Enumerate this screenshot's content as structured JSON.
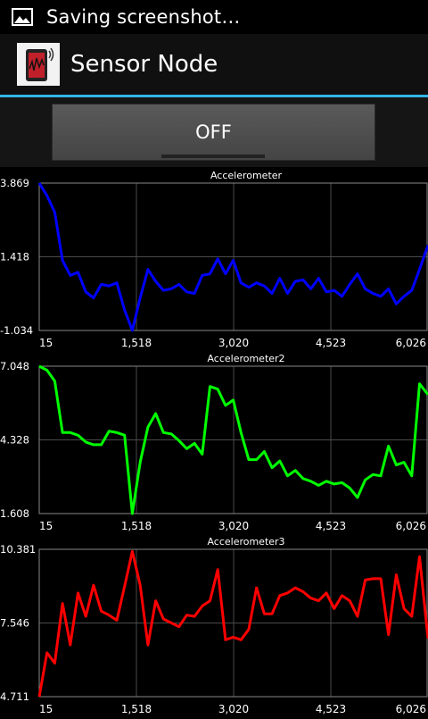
{
  "status_bar": {
    "notification_text": "Saving screenshot…",
    "icon": "image-icon"
  },
  "action_bar": {
    "title": "Sensor Node",
    "app_icon": "sensor-node-app-icon",
    "accent_color": "#33b5e5"
  },
  "toggle": {
    "label": "OFF",
    "state": "off"
  },
  "chart_data": [
    {
      "type": "line",
      "title": "Accelerometer",
      "color": "#0000ff",
      "ylim": [
        -1.034,
        3.869
      ],
      "xlim": [
        15,
        6026
      ],
      "y_ticks": [
        "3.869",
        "1.418",
        "-1.034"
      ],
      "x_ticks": [
        "15",
        "1,518",
        "3,020",
        "4,523",
        "6,026"
      ],
      "grid": true,
      "x": [
        15,
        135,
        255,
        375,
        495,
        615,
        735,
        855,
        975,
        1095,
        1215,
        1335,
        1455,
        1575,
        1695,
        1815,
        1935,
        2055,
        2175,
        2295,
        2415,
        2535,
        2655,
        2775,
        2895,
        3015,
        3135,
        3255,
        3375,
        3495,
        3615,
        3735,
        3855,
        3975,
        4095,
        4215,
        4335,
        4455,
        4575,
        4695,
        4815,
        4935,
        5055,
        5175,
        5295,
        5415,
        5535,
        5655,
        5775,
        5895,
        6026
      ],
      "values": [
        3.87,
        3.45,
        2.9,
        1.3,
        0.8,
        0.9,
        0.25,
        0.05,
        0.5,
        0.45,
        0.55,
        -0.35,
        -1.03,
        0.05,
        1.0,
        0.6,
        0.3,
        0.35,
        0.5,
        0.25,
        0.2,
        0.8,
        0.85,
        1.35,
        0.85,
        1.3,
        0.55,
        0.4,
        0.55,
        0.45,
        0.2,
        0.7,
        0.2,
        0.6,
        0.65,
        0.35,
        0.7,
        0.25,
        0.3,
        0.1,
        0.5,
        0.85,
        0.35,
        0.2,
        0.1,
        0.35,
        -0.15,
        0.1,
        0.3,
        1.0,
        1.8
      ]
    },
    {
      "type": "line",
      "title": "Accelerometer2",
      "color": "#00ff00",
      "ylim": [
        1.608,
        7.048
      ],
      "xlim": [
        15,
        6026
      ],
      "y_ticks": [
        "7.048",
        "4.328",
        "1.608"
      ],
      "x_ticks": [
        "15",
        "1,518",
        "3,020",
        "4,523",
        "6,026"
      ],
      "grid": true,
      "x": [
        15,
        135,
        255,
        375,
        495,
        615,
        735,
        855,
        975,
        1095,
        1215,
        1335,
        1455,
        1575,
        1695,
        1815,
        1935,
        2055,
        2175,
        2295,
        2415,
        2535,
        2655,
        2775,
        2895,
        3015,
        3135,
        3255,
        3375,
        3495,
        3615,
        3735,
        3855,
        3975,
        4095,
        4215,
        4335,
        4455,
        4575,
        4695,
        4815,
        4935,
        5055,
        5175,
        5295,
        5415,
        5535,
        5655,
        5775,
        5895,
        6026
      ],
      "values": [
        7.05,
        6.9,
        6.5,
        4.6,
        4.6,
        4.5,
        4.25,
        4.15,
        4.15,
        4.65,
        4.6,
        4.5,
        1.6,
        3.5,
        4.8,
        5.3,
        4.6,
        4.55,
        4.3,
        4.0,
        4.2,
        3.8,
        6.3,
        6.2,
        5.6,
        5.8,
        4.6,
        3.6,
        3.6,
        3.9,
        3.3,
        3.55,
        3.0,
        3.2,
        2.9,
        2.8,
        2.65,
        2.8,
        2.7,
        2.75,
        2.55,
        2.2,
        2.85,
        3.05,
        3.0,
        4.1,
        3.4,
        3.5,
        3.0,
        6.4,
        6.0
      ]
    },
    {
      "type": "line",
      "title": "Accelerometer3",
      "color": "#ff0000",
      "ylim": [
        4.711,
        10.381
      ],
      "xlim": [
        15,
        6026
      ],
      "y_ticks": [
        "10.381",
        "7.546",
        "4.711"
      ],
      "x_ticks": [
        "15",
        "1,518",
        "3,020",
        "4,523",
        "6,026"
      ],
      "grid": true,
      "x": [
        15,
        135,
        255,
        375,
        495,
        615,
        735,
        855,
        975,
        1095,
        1215,
        1335,
        1455,
        1575,
        1695,
        1815,
        1935,
        2055,
        2175,
        2295,
        2415,
        2535,
        2655,
        2775,
        2895,
        3015,
        3135,
        3255,
        3375,
        3495,
        3615,
        3735,
        3855,
        3975,
        4095,
        4215,
        4335,
        4455,
        4575,
        4695,
        4815,
        4935,
        5055,
        5175,
        5295,
        5415,
        5535,
        5655,
        5775,
        5895,
        6026
      ],
      "values": [
        4.7,
        6.4,
        6.0,
        8.3,
        6.7,
        8.7,
        7.8,
        9.0,
        8.0,
        7.85,
        7.65,
        8.95,
        10.3,
        9.0,
        6.7,
        8.4,
        7.7,
        7.55,
        7.4,
        7.85,
        7.8,
        8.2,
        8.4,
        9.6,
        6.9,
        7.0,
        6.9,
        7.3,
        8.9,
        7.9,
        7.9,
        8.6,
        8.7,
        8.9,
        8.75,
        8.5,
        8.4,
        8.7,
        8.1,
        8.6,
        8.4,
        7.8,
        9.2,
        9.25,
        9.25,
        7.1,
        9.4,
        8.1,
        7.8,
        10.1,
        6.95
      ]
    }
  ]
}
